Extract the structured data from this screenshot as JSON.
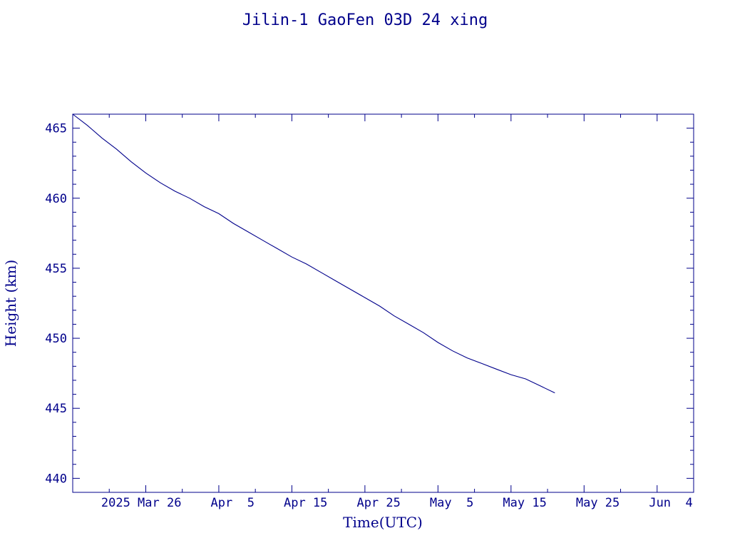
{
  "chart_data": {
    "type": "line",
    "title": "Jilin-1 GaoFen 03D 24 xing",
    "xlabel": "Time(UTC)",
    "ylabel": "Height (km)",
    "x_axis_type": "date",
    "xlim": [
      "2025-03-16",
      "2025-06-09"
    ],
    "ylim": [
      439,
      466
    ],
    "x_ticks": [
      {
        "date": "2025-03-26",
        "label": "2025 Mar 26"
      },
      {
        "date": "2025-04-05",
        "label": "Apr  5"
      },
      {
        "date": "2025-04-15",
        "label": "Apr 15"
      },
      {
        "date": "2025-04-25",
        "label": "Apr 25"
      },
      {
        "date": "2025-05-05",
        "label": "May  5"
      },
      {
        "date": "2025-05-15",
        "label": "May 15"
      },
      {
        "date": "2025-05-25",
        "label": "May 25"
      },
      {
        "date": "2025-06-04",
        "label": "Jun  4"
      }
    ],
    "y_ticks": [
      440,
      445,
      450,
      455,
      460,
      465
    ],
    "grid": false,
    "line_color": "#00008b",
    "series": [
      {
        "x": [
          "2025-03-16",
          "2025-03-18",
          "2025-03-20",
          "2025-03-22",
          "2025-03-24",
          "2025-03-26",
          "2025-03-28",
          "2025-03-30",
          "2025-04-01",
          "2025-04-03",
          "2025-04-05",
          "2025-04-07",
          "2025-04-09",
          "2025-04-11",
          "2025-04-13",
          "2025-04-15",
          "2025-04-17",
          "2025-04-19",
          "2025-04-21",
          "2025-04-23",
          "2025-04-25",
          "2025-04-27",
          "2025-04-29",
          "2025-05-01",
          "2025-05-03",
          "2025-05-05",
          "2025-05-07",
          "2025-05-09",
          "2025-05-11",
          "2025-05-13",
          "2025-05-15",
          "2025-05-17",
          "2025-05-19",
          "2025-05-21"
        ],
        "y": [
          466.0,
          465.2,
          464.3,
          463.5,
          462.6,
          461.8,
          461.1,
          460.5,
          460.0,
          459.4,
          458.9,
          458.2,
          457.6,
          457.0,
          456.4,
          455.8,
          455.3,
          454.7,
          454.1,
          453.5,
          452.9,
          452.3,
          451.6,
          451.0,
          450.4,
          449.7,
          449.1,
          448.6,
          448.2,
          447.8,
          447.4,
          447.1,
          446.6,
          446.1
        ]
      }
    ]
  }
}
